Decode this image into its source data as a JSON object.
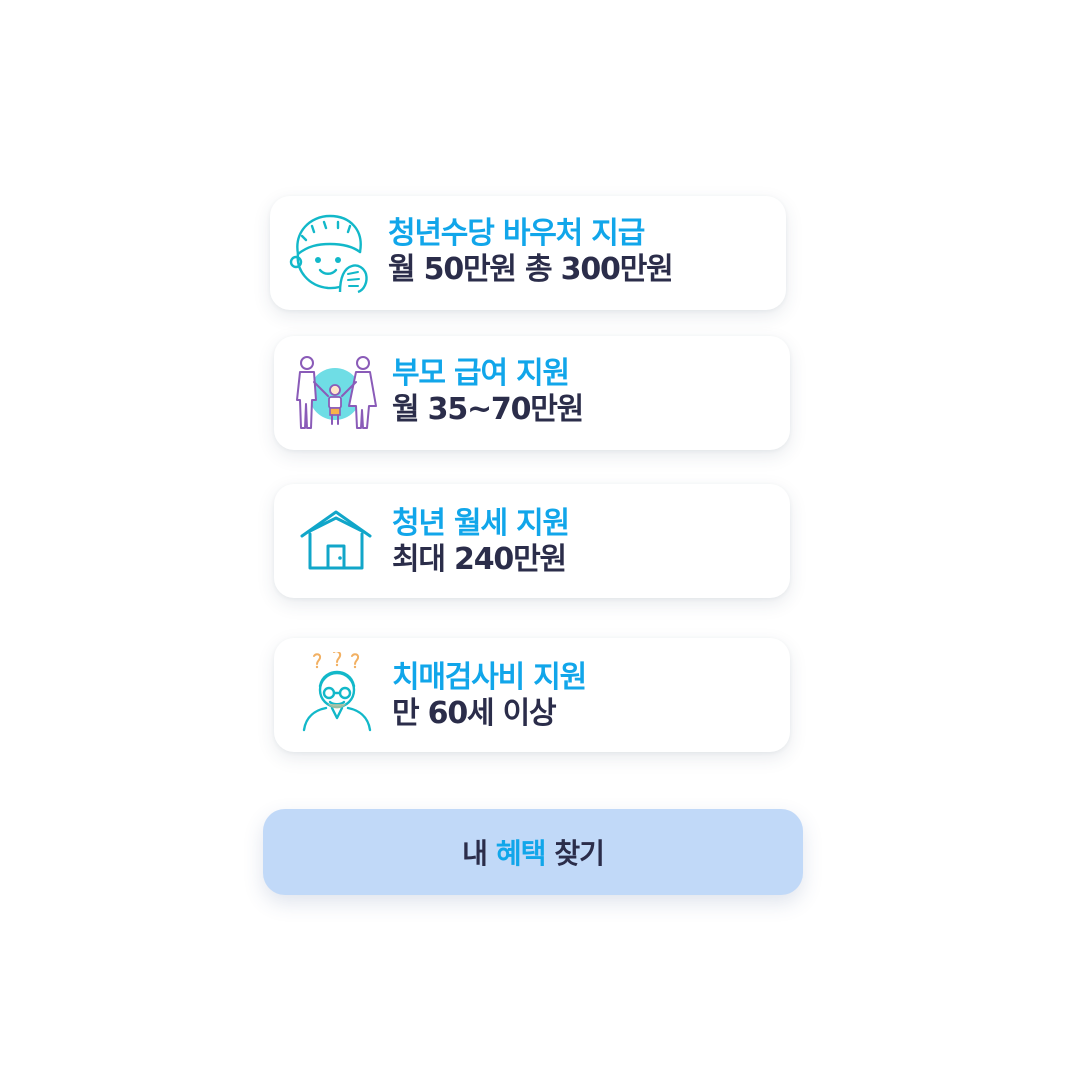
{
  "benefits": [
    {
      "icon": "young-man-face-icon",
      "title": "청년수당 바우처 지급",
      "desc": "월 50만원 총 300만원"
    },
    {
      "icon": "family-icon",
      "title": "부모 급여 지원",
      "desc": "월 35~70만원"
    },
    {
      "icon": "house-icon",
      "title": "청년 월세 지원",
      "desc": "최대 240만원"
    },
    {
      "icon": "confused-elder-icon",
      "title": "치매검사비 지원",
      "desc": "만 60세 이상"
    }
  ],
  "cta": {
    "prefix": "내",
    "highlight": "혜택",
    "suffix": "찾기"
  },
  "colors": {
    "title": "#11a6ea",
    "text": "#2b2d4a",
    "icon_line": "#12b8c9",
    "button_bg": "#c1d9f8"
  }
}
